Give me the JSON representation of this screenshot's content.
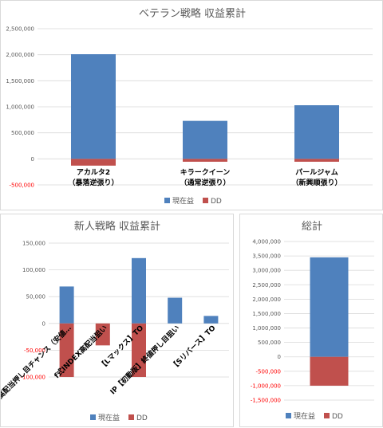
{
  "colors": {
    "current": "#4f81bd",
    "dd": "#c0504d",
    "grid": "#d9d9d9",
    "tick_pos": "#595959",
    "tick_neg": "#ff0000"
  },
  "chart_data": [
    {
      "type": "bar",
      "title": "ベテラン戦略 収益累計",
      "categories": [
        "アカルタ2\n（暴落逆張り）",
        "キラークイーン\n（通常逆張り）",
        "パールジャム\n（新興順張り）"
      ],
      "series": [
        {
          "name": "現在益",
          "values": [
            2010000,
            730000,
            1030000
          ]
        },
        {
          "name": "DD",
          "values": [
            -130000,
            -55000,
            -55000
          ]
        }
      ],
      "ylim": [
        -500000,
        2500000
      ],
      "yticks": [
        -500000,
        0,
        500000,
        1000000,
        1500000,
        2000000,
        2500000
      ],
      "ytick_labels": [
        "-500,000",
        "0",
        "500,000",
        "1,000,000",
        "1,500,000",
        "2,000,000",
        "2,500,000"
      ],
      "grid": true,
      "legend": "bottom"
    },
    {
      "type": "bar",
      "title": "新人戦略 収益累計",
      "categories": [
        "高配当押し目チャンス（安値…",
        "f式INDEX高配当狙い",
        "【Lマックス】TO",
        "IP【初動版】終値押し目狙い",
        "【Sリバース】TO"
      ],
      "series": [
        {
          "name": "現在益",
          "values": [
            69000,
            0,
            122000,
            48000,
            14000
          ]
        },
        {
          "name": "DD",
          "values": [
            -100000,
            -41000,
            -100000,
            0,
            0
          ]
        }
      ],
      "ylim": [
        -100000,
        150000
      ],
      "yticks": [
        -100000,
        -50000,
        0,
        50000,
        100000,
        150000
      ],
      "ytick_labels": [
        "-100,000",
        "-50,000",
        "0",
        "50,000",
        "100,000",
        "150,000"
      ],
      "grid": true,
      "legend": "bottom"
    },
    {
      "type": "bar",
      "title": "総計",
      "categories": [
        ""
      ],
      "series": [
        {
          "name": "現在益",
          "values": [
            3450000
          ]
        },
        {
          "name": "DD",
          "values": [
            -1000000
          ]
        }
      ],
      "ylim": [
        -1500000,
        4000000
      ],
      "yticks": [
        -1500000,
        -1000000,
        -500000,
        0,
        500000,
        1000000,
        1500000,
        2000000,
        2500000,
        3000000,
        3500000,
        4000000
      ],
      "ytick_labels": [
        "-1,500,000",
        "-1,000,000",
        "-500,000",
        "0",
        "500,000",
        "1,000,000",
        "1,500,000",
        "2,000,000",
        "2,500,000",
        "3,000,000",
        "3,500,000",
        "4,000,000"
      ],
      "grid": true,
      "legend": "bottom"
    }
  ]
}
